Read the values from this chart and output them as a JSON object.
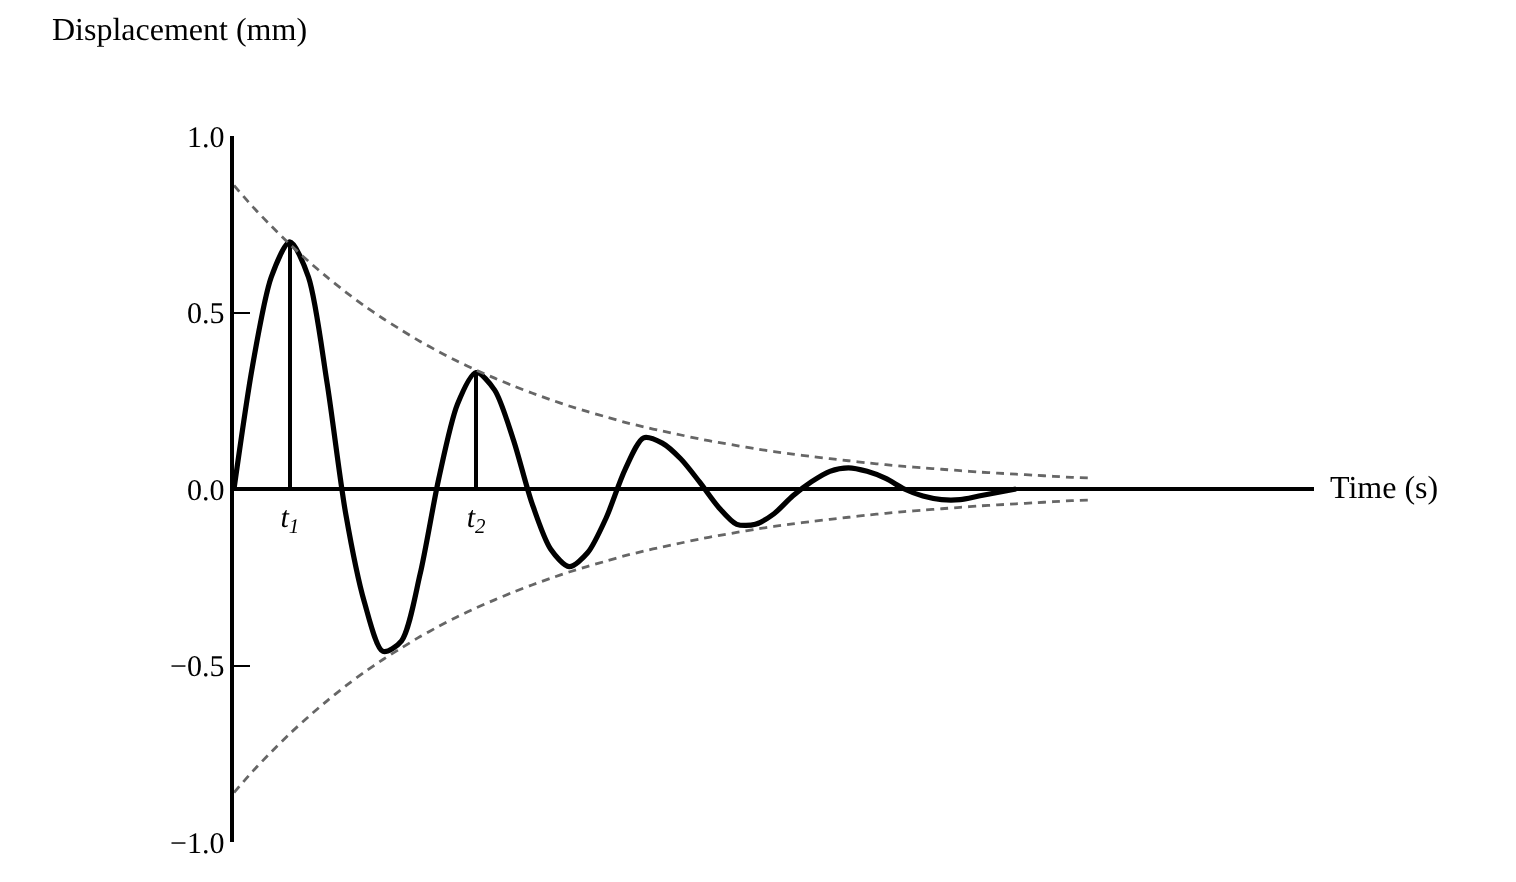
{
  "chart_data": {
    "type": "line",
    "ylabel": "Displacement (mm)",
    "xlabel": "Time (s)",
    "categories": [
      null,
      null,
      null,
      "t$_{1}$",
      null,
      null,
      null,
      null,
      null,
      null,
      null,
      null,
      null,
      "t$_{2}$",
      null,
      null,
      null,
      null,
      null,
      null,
      null,
      null,
      null,
      null,
      null,
      null,
      null,
      null,
      null,
      null,
      null,
      null,
      null,
      null,
      null,
      null,
      null,
      null,
      null,
      null,
      null,
      null,
      null,
      null,
      null,
      null,
      null,
      null,
      null,
      null,
      null,
      null,
      null,
      null,
      null,
      null,
      null,
      null,
      null
    ],
    "series": [
      {
        "color": "#000000",
        "line_style": "solid",
        "values": [
          0,
          0.35,
          0.6,
          0.7,
          0.6,
          0.3,
          -0.07,
          -0.32,
          -0.46,
          -0.43,
          -0.24,
          0.03,
          0.24,
          0.33,
          0.28,
          0.14,
          -0.04,
          -0.17,
          -0.22,
          -0.18,
          -0.08,
          0.055,
          0.145,
          0.13,
          0.085,
          0.02,
          -0.05,
          -0.1,
          -0.1,
          -0.07,
          -0.02,
          0.02,
          0.05,
          0.06,
          0.05,
          0.03,
          0,
          -0.02,
          -0.03,
          -0.03,
          -0.02,
          -0.01,
          0,
          null,
          null,
          null,
          null,
          null,
          null,
          null,
          null,
          null,
          null,
          null,
          null,
          null,
          null,
          null,
          null
        ]
      },
      {
        "color": "#666666",
        "line_style": "dashed",
        "values": [
          0.86,
          0.8,
          0.745,
          0.693,
          0.645,
          0.6,
          0.558,
          0.519,
          0.483,
          0.45,
          0.418,
          0.389,
          0.362,
          0.337,
          0.314,
          0.292,
          0.272,
          0.253,
          0.235,
          0.219,
          0.204,
          0.189,
          0.176,
          0.164,
          0.153,
          0.142,
          0.132,
          0.123,
          0.114,
          0.106,
          0.099,
          0.092,
          0.086,
          0.08,
          0.074,
          0.069,
          0.064,
          0.06,
          0.056,
          0.052,
          0.048,
          0.045,
          0.042,
          0.039,
          0.036,
          0.033,
          0.031,
          null,
          null,
          null,
          null,
          null,
          null,
          null,
          null,
          null,
          null,
          null,
          null
        ]
      },
      {
        "color": "#666666",
        "line_style": "dashed",
        "values": [
          -0.86,
          -0.8,
          -0.745,
          -0.693,
          -0.645,
          -0.6,
          -0.558,
          -0.519,
          -0.483,
          -0.45,
          -0.418,
          -0.389,
          -0.362,
          -0.337,
          -0.314,
          -0.292,
          -0.272,
          -0.253,
          -0.235,
          -0.219,
          -0.204,
          -0.189,
          -0.176,
          -0.164,
          -0.153,
          -0.142,
          -0.132,
          -0.123,
          -0.114,
          -0.106,
          -0.099,
          -0.092,
          -0.086,
          -0.08,
          -0.074,
          -0.069,
          -0.064,
          -0.06,
          -0.056,
          -0.052,
          -0.048,
          -0.045,
          -0.042,
          -0.039,
          -0.036,
          -0.033,
          -0.031,
          null,
          null,
          null,
          null,
          null,
          null,
          null,
          null,
          null,
          null,
          null,
          null
        ]
      },
      {
        "type": "bar",
        "color": "#000000",
        "values": [
          null,
          null,
          null,
          0.7,
          null,
          null,
          null,
          null,
          null,
          null,
          null,
          null,
          null,
          0.33,
          null,
          null,
          null,
          null,
          null,
          null,
          null,
          null,
          null,
          null,
          null,
          null,
          null,
          null,
          null,
          null,
          null,
          null,
          null,
          null,
          null,
          null,
          null,
          null,
          null,
          null,
          null,
          null,
          null,
          null,
          null,
          null,
          null,
          null,
          null,
          null,
          null,
          null,
          null,
          null,
          null,
          null,
          null,
          null,
          null
        ]
      }
    ],
    "ylim": [
      -1.0,
      1.0
    ],
    "yticks": [
      {
        "value": 1.0,
        "label": "1.0"
      },
      {
        "value": 0.5,
        "label": "0.5"
      },
      {
        "value": 0.0,
        "label": "0.0"
      },
      {
        "value": -0.5,
        "label": "−0.5"
      },
      {
        "value": -1.0,
        "label": "−1.0"
      }
    ]
  }
}
